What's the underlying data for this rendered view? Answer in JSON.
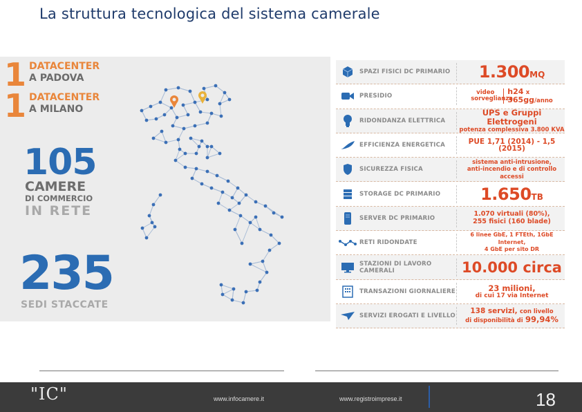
{
  "slide": {
    "title": "La struttura tecnologica del sistema camerale",
    "page_number": "18"
  },
  "datacenters": [
    {
      "num": "1",
      "line1": "DATACENTER",
      "line2": "A PADOVA"
    },
    {
      "num": "1",
      "line1": "DATACENTER",
      "line2": "A MILANO"
    }
  ],
  "camere": {
    "count": "105",
    "line1": "CAMERE",
    "line2": "DI COMMERCIO",
    "line3": "IN RETE"
  },
  "sedi": {
    "count": "235",
    "label": "SEDI STACCATE"
  },
  "stats": [
    {
      "icon": "cube-icon",
      "label": "SPAZI FISICI DC PRIMARIO",
      "value": "1.300",
      "suffix": "MQ"
    },
    {
      "icon": "video-camera-icon",
      "label": "PRESIDIO",
      "value_a": "video sorveglianza",
      "value_b1": "h24",
      "value_b2": "x",
      "value_b3": "365gg",
      "value_b4": "/anno"
    },
    {
      "icon": "lightbulb-icon",
      "label": "RIDONDANZA ELETTRICA",
      "value1": "UPS e Gruppi Elettrogeni",
      "value2": "potenza complessiva 3.800 KVA"
    },
    {
      "icon": "leaf-icon",
      "label": "EFFICIENZA ENERGETICA",
      "value": "PUE 1,71 (2014) - 1,5 (2015)"
    },
    {
      "icon": "shield-icon",
      "label": "SICUREZZA FISICA",
      "value1": "sistema anti-intrusione,",
      "value2": "anti-incendio e di controllo accessi"
    },
    {
      "icon": "storage-icon",
      "label": "STORAGE DC PRIMARIO",
      "value": "1.650",
      "suffix": "TB"
    },
    {
      "icon": "server-icon",
      "label": "SERVER DC PRIMARIO",
      "value1": "1.070 virtuali (80%),",
      "value2": "255 fisici (160 blade)"
    },
    {
      "icon": "network-icon",
      "label": "RETI RIDONDATE",
      "value1": "6 linee GbE, 1 FTEth, 1GbE Internet,",
      "value2": "4 GbE per sito DR"
    },
    {
      "icon": "monitor-icon",
      "label": "STAZIONI DI LAVORO CAMERALI",
      "value": "10.000 circa"
    },
    {
      "icon": "transactions-icon",
      "label": "TRANSAZIONI GIORNALIERE",
      "value1": "23 milioni,",
      "value2": "di cui 17 via Internet"
    },
    {
      "icon": "plane-icon",
      "label": "SERVIZI EROGATI E LIVELLO",
      "value1a": "138 servizi,",
      "value1b": "con livello",
      "value2a": "di disponibilità di",
      "value2b": "99,94%"
    }
  ],
  "footer": {
    "logo": "\"IC\"",
    "url1": "www.infocamere.it",
    "url2": "www.registroimprese.it"
  },
  "colors": {
    "orange": "#e9863b",
    "blue": "#2b6cb3",
    "red": "#dd4a26",
    "footer_bg": "#3b3b3b"
  }
}
